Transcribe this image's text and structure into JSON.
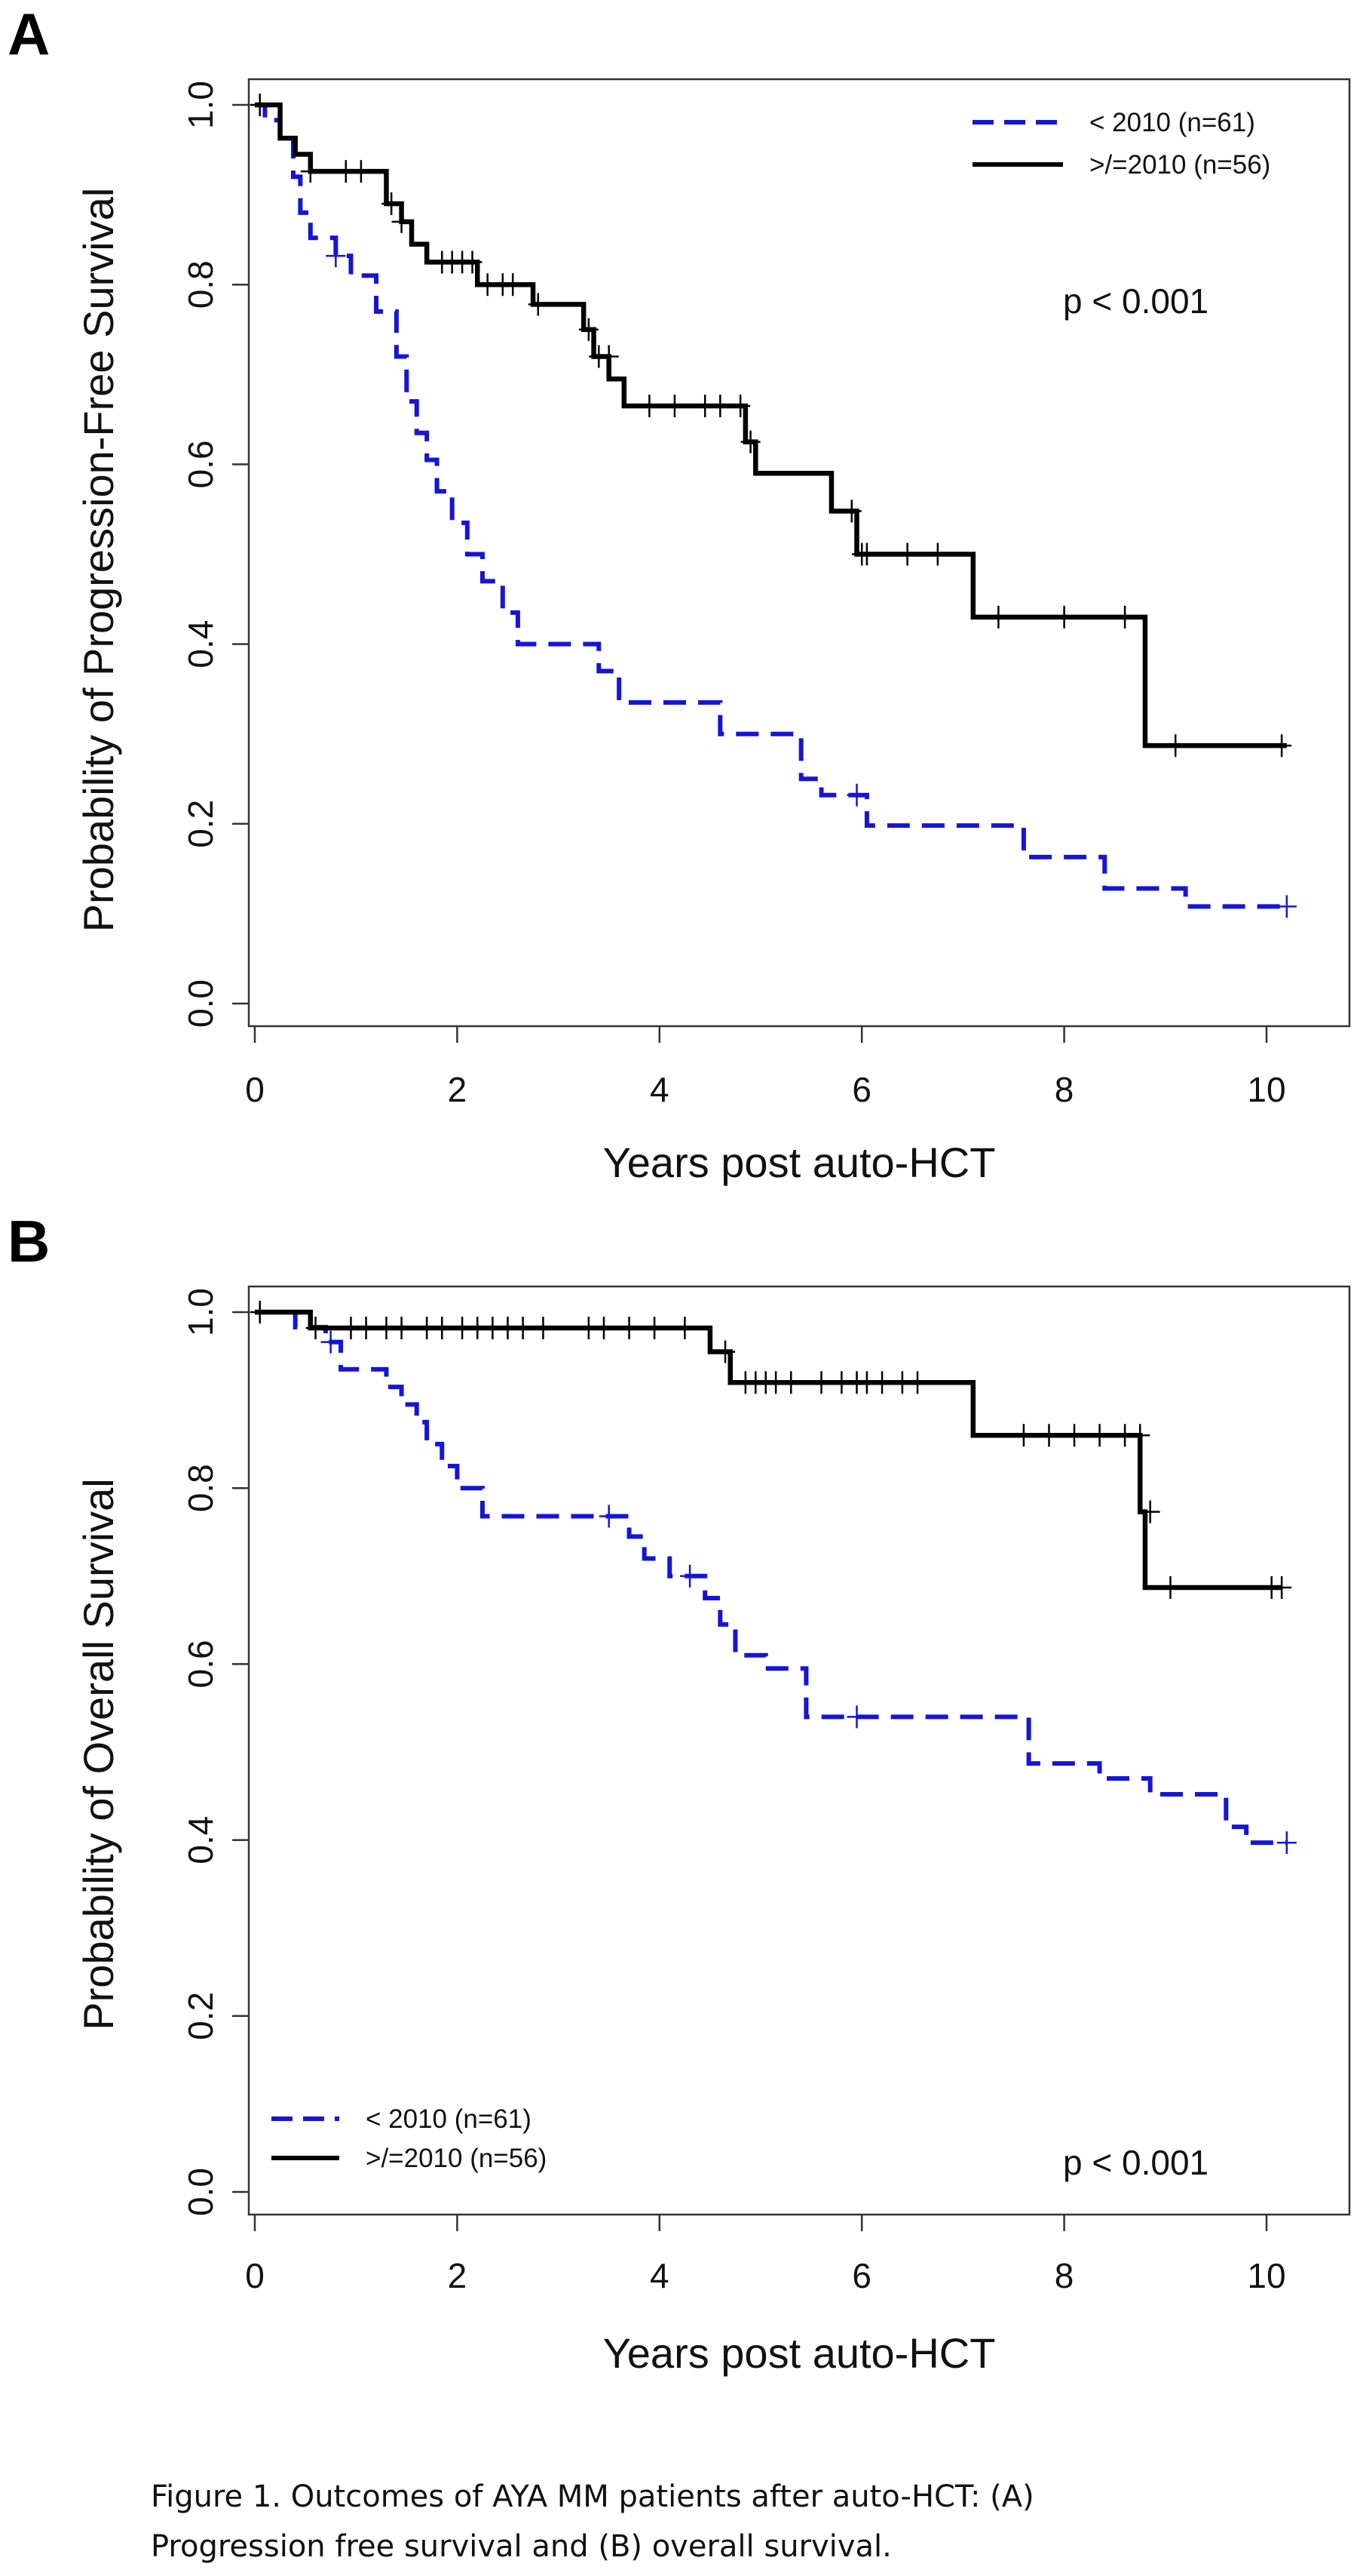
{
  "caption": {
    "line1": "Figure 1. Outcomes of AYA MM patients after auto-HCT: (A)",
    "line2": "Progression free survival and (B) overall survival."
  },
  "chart_data": [
    {
      "type": "line",
      "panel": "A",
      "ylabel": "Probability of Progression-Free Survival",
      "xlabel": "Years post auto-HCT",
      "xlim": [
        0,
        11
      ],
      "ylim": [
        0,
        1
      ],
      "xticks": [
        "0",
        "2",
        "4",
        "6",
        "8",
        "10"
      ],
      "yticks": [
        "0.0",
        "0.2",
        "0.4",
        "0.6",
        "0.8",
        "1.0"
      ],
      "grid": false,
      "legend_position": "top-right",
      "annotation": "p < 0.001",
      "series": [
        {
          "name": "< 2010 (n=61)",
          "color": "#1515d6",
          "style": "dashed",
          "x": [
            0,
            0.1,
            0.25,
            0.38,
            0.45,
            0.55,
            0.8,
            0.95,
            1.2,
            1.4,
            1.5,
            1.6,
            1.7,
            1.8,
            1.95,
            2.1,
            2.25,
            2.45,
            2.6,
            3.4,
            3.6,
            4.6,
            5.4,
            5.6,
            6.05,
            7.6,
            8.4,
            9.2,
            10.2
          ],
          "y": [
            1.0,
            0.983,
            0.966,
            0.92,
            0.88,
            0.852,
            0.832,
            0.81,
            0.77,
            0.72,
            0.67,
            0.635,
            0.605,
            0.57,
            0.535,
            0.5,
            0.47,
            0.435,
            0.4,
            0.37,
            0.335,
            0.3,
            0.25,
            0.232,
            0.198,
            0.163,
            0.128,
            0.108,
            0.108
          ],
          "censored": [
            {
              "x": 0.8,
              "y": 0.832
            },
            {
              "x": 5.95,
              "y": 0.232
            },
            {
              "x": 10.2,
              "y": 0.108
            }
          ]
        },
        {
          "name": ">/=2010 (n=56)",
          "color": "#000000",
          "style": "solid",
          "x": [
            0,
            0.25,
            0.4,
            0.55,
            1.3,
            1.45,
            1.55,
            1.7,
            2.2,
            2.75,
            3.25,
            3.35,
            3.5,
            3.65,
            4.85,
            4.95,
            5.7,
            5.95,
            7.1,
            8.8,
            10.2
          ],
          "y": [
            1.0,
            0.963,
            0.945,
            0.926,
            0.89,
            0.87,
            0.845,
            0.825,
            0.8,
            0.778,
            0.75,
            0.72,
            0.695,
            0.665,
            0.625,
            0.59,
            0.548,
            0.5,
            0.43,
            0.287,
            0.287
          ],
          "censored": [
            {
              "x": 0.05,
              "y": 1.0
            },
            {
              "x": 0.55,
              "y": 0.926
            },
            {
              "x": 0.9,
              "y": 0.926
            },
            {
              "x": 1.05,
              "y": 0.926
            },
            {
              "x": 1.35,
              "y": 0.89
            },
            {
              "x": 1.45,
              "y": 0.87
            },
            {
              "x": 1.85,
              "y": 0.825
            },
            {
              "x": 1.95,
              "y": 0.825
            },
            {
              "x": 2.05,
              "y": 0.825
            },
            {
              "x": 2.15,
              "y": 0.825
            },
            {
              "x": 2.3,
              "y": 0.8
            },
            {
              "x": 2.45,
              "y": 0.8
            },
            {
              "x": 2.55,
              "y": 0.8
            },
            {
              "x": 2.8,
              "y": 0.778
            },
            {
              "x": 3.3,
              "y": 0.75
            },
            {
              "x": 3.4,
              "y": 0.72
            },
            {
              "x": 3.5,
              "y": 0.72
            },
            {
              "x": 3.9,
              "y": 0.665
            },
            {
              "x": 4.15,
              "y": 0.665
            },
            {
              "x": 4.45,
              "y": 0.665
            },
            {
              "x": 4.6,
              "y": 0.665
            },
            {
              "x": 4.8,
              "y": 0.665
            },
            {
              "x": 4.9,
              "y": 0.625
            },
            {
              "x": 5.9,
              "y": 0.548
            },
            {
              "x": 6.0,
              "y": 0.5
            },
            {
              "x": 6.05,
              "y": 0.5
            },
            {
              "x": 6.45,
              "y": 0.5
            },
            {
              "x": 6.75,
              "y": 0.5
            },
            {
              "x": 7.35,
              "y": 0.43
            },
            {
              "x": 8.0,
              "y": 0.43
            },
            {
              "x": 8.6,
              "y": 0.43
            },
            {
              "x": 9.1,
              "y": 0.287
            },
            {
              "x": 10.15,
              "y": 0.287
            }
          ]
        }
      ]
    },
    {
      "type": "line",
      "panel": "B",
      "ylabel": "Probability of Overall Survival",
      "xlabel": "Years post auto-HCT",
      "xlim": [
        0,
        11
      ],
      "ylim": [
        0,
        1
      ],
      "xticks": [
        "0",
        "2",
        "4",
        "6",
        "8",
        "10"
      ],
      "yticks": [
        "0.0",
        "0.2",
        "0.4",
        "0.6",
        "0.8",
        "1.0"
      ],
      "grid": false,
      "legend_position": "bottom-left",
      "annotation": "p < 0.001",
      "series": [
        {
          "name": "< 2010 (n=61)",
          "color": "#1515d6",
          "style": "dashed",
          "x": [
            0,
            0.4,
            0.7,
            0.85,
            1.3,
            1.45,
            1.6,
            1.7,
            1.85,
            2.0,
            2.25,
            3.7,
            3.85,
            4.1,
            4.45,
            4.6,
            4.75,
            5.05,
            5.45,
            7.65,
            8.35,
            8.85,
            9.6,
            9.8,
            10.2
          ],
          "y": [
            1.0,
            0.983,
            0.966,
            0.935,
            0.915,
            0.895,
            0.875,
            0.85,
            0.825,
            0.8,
            0.768,
            0.745,
            0.72,
            0.7,
            0.675,
            0.645,
            0.61,
            0.595,
            0.54,
            0.487,
            0.47,
            0.452,
            0.415,
            0.397,
            0.397
          ],
          "censored": [
            {
              "x": 0.75,
              "y": 0.966
            },
            {
              "x": 3.5,
              "y": 0.768
            },
            {
              "x": 4.3,
              "y": 0.7
            },
            {
              "x": 5.95,
              "y": 0.54
            },
            {
              "x": 10.2,
              "y": 0.397
            }
          ]
        },
        {
          "name": ">/=2010 (n=56)",
          "color": "#000000",
          "style": "solid",
          "x": [
            0,
            0.55,
            4.5,
            4.7,
            7.1,
            8.75,
            8.8,
            10.15
          ],
          "y": [
            1.0,
            0.982,
            0.955,
            0.92,
            0.86,
            0.773,
            0.687,
            0.687
          ],
          "censored": [
            {
              "x": 0.05,
              "y": 1.0
            },
            {
              "x": 0.6,
              "y": 0.982
            },
            {
              "x": 0.95,
              "y": 0.982
            },
            {
              "x": 1.1,
              "y": 0.982
            },
            {
              "x": 1.3,
              "y": 0.982
            },
            {
              "x": 1.45,
              "y": 0.982
            },
            {
              "x": 1.7,
              "y": 0.982
            },
            {
              "x": 1.85,
              "y": 0.982
            },
            {
              "x": 2.05,
              "y": 0.982
            },
            {
              "x": 2.2,
              "y": 0.982
            },
            {
              "x": 2.35,
              "y": 0.982
            },
            {
              "x": 2.5,
              "y": 0.982
            },
            {
              "x": 2.65,
              "y": 0.982
            },
            {
              "x": 2.85,
              "y": 0.982
            },
            {
              "x": 3.3,
              "y": 0.982
            },
            {
              "x": 3.45,
              "y": 0.982
            },
            {
              "x": 3.7,
              "y": 0.982
            },
            {
              "x": 3.95,
              "y": 0.982
            },
            {
              "x": 4.25,
              "y": 0.982
            },
            {
              "x": 4.65,
              "y": 0.955
            },
            {
              "x": 4.85,
              "y": 0.92
            },
            {
              "x": 4.95,
              "y": 0.92
            },
            {
              "x": 5.05,
              "y": 0.92
            },
            {
              "x": 5.15,
              "y": 0.92
            },
            {
              "x": 5.3,
              "y": 0.92
            },
            {
              "x": 5.6,
              "y": 0.92
            },
            {
              "x": 5.8,
              "y": 0.92
            },
            {
              "x": 5.95,
              "y": 0.92
            },
            {
              "x": 6.05,
              "y": 0.92
            },
            {
              "x": 6.2,
              "y": 0.92
            },
            {
              "x": 6.4,
              "y": 0.92
            },
            {
              "x": 6.55,
              "y": 0.92
            },
            {
              "x": 7.6,
              "y": 0.86
            },
            {
              "x": 7.85,
              "y": 0.86
            },
            {
              "x": 8.1,
              "y": 0.86
            },
            {
              "x": 8.35,
              "y": 0.86
            },
            {
              "x": 8.6,
              "y": 0.86
            },
            {
              "x": 8.75,
              "y": 0.86
            },
            {
              "x": 8.85,
              "y": 0.773
            },
            {
              "x": 9.05,
              "y": 0.687
            },
            {
              "x": 10.05,
              "y": 0.687
            },
            {
              "x": 10.15,
              "y": 0.687
            }
          ]
        }
      ]
    }
  ]
}
